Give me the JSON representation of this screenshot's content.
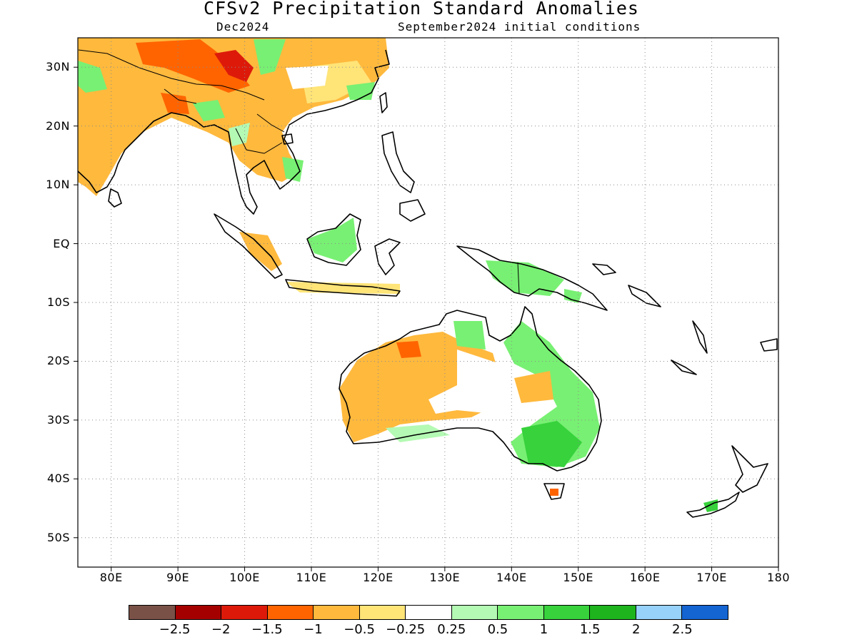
{
  "title": "CFSv2 Precipitation Standard Anomalies",
  "subtitle_left": "Dec2024",
  "subtitle_right": "September2024 initial conditions",
  "map": {
    "lon_range": [
      75,
      180
    ],
    "lat_range": [
      -55,
      35
    ],
    "grid": "dotted",
    "lat_ticks": [
      {
        "value": 30,
        "label": "30N"
      },
      {
        "value": 20,
        "label": "20N"
      },
      {
        "value": 10,
        "label": "10N"
      },
      {
        "value": 0,
        "label": "EQ"
      },
      {
        "value": -10,
        "label": "10S"
      },
      {
        "value": -20,
        "label": "20S"
      },
      {
        "value": -30,
        "label": "30S"
      },
      {
        "value": -40,
        "label": "40S"
      },
      {
        "value": -50,
        "label": "50S"
      }
    ],
    "lon_ticks": [
      {
        "value": 80,
        "label": "80E"
      },
      {
        "value": 90,
        "label": "90E"
      },
      {
        "value": 100,
        "label": "100E"
      },
      {
        "value": 110,
        "label": "110E"
      },
      {
        "value": 120,
        "label": "120E"
      },
      {
        "value": 130,
        "label": "130E"
      },
      {
        "value": 140,
        "label": "140E"
      },
      {
        "value": 150,
        "label": "150E"
      },
      {
        "value": 160,
        "label": "160E"
      },
      {
        "value": 170,
        "label": "170E"
      },
      {
        "value": 180,
        "label": "180"
      }
    ]
  },
  "colorbar": {
    "colors": [
      "#7a5147",
      "#a50000",
      "#dd1a0a",
      "#ff6400",
      "#ffb93d",
      "#ffe478",
      "#ffffff",
      "#b4fab4",
      "#78f073",
      "#37d23c",
      "#1eb41e",
      "#96d2fa",
      "#1464d2"
    ],
    "labels": [
      "−2.5",
      "−2",
      "−1.5",
      "−1",
      "−0.5",
      "−0.25",
      "0.25",
      "0.5",
      "1",
      "1.5",
      "2",
      "2.5"
    ]
  }
}
